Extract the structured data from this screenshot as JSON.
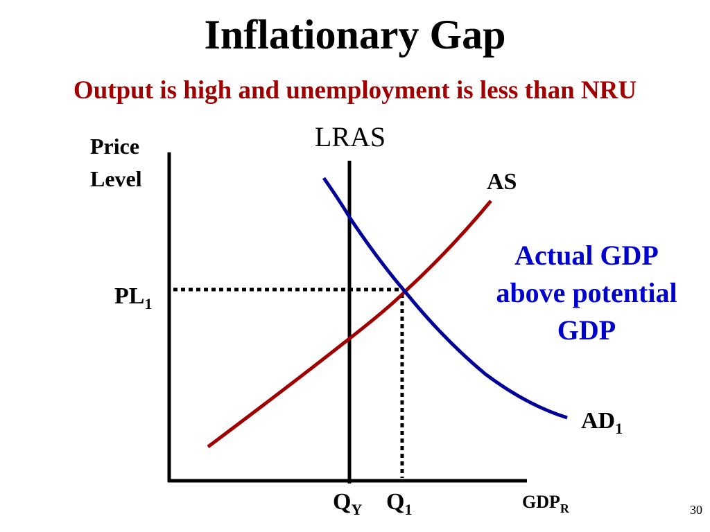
{
  "header": {
    "title": "Inflationary Gap",
    "subtitle": "Output is high and unemployment is less than NRU"
  },
  "labels": {
    "y_axis": [
      "Price",
      "Level"
    ],
    "lras": "LRAS",
    "as": "AS",
    "annotation": [
      "Actual GDP",
      "above potential",
      "GDP"
    ],
    "pl1": {
      "text": "PL",
      "sub": "1"
    },
    "ad1": {
      "text": "AD",
      "sub": "1"
    },
    "qy": {
      "text": "Q",
      "sub": "Y"
    },
    "q1": {
      "text": "Q",
      "sub": "1"
    },
    "x_axis": {
      "text": "GDP",
      "sub": "R"
    }
  },
  "footer": {
    "page_number": "30"
  }
}
